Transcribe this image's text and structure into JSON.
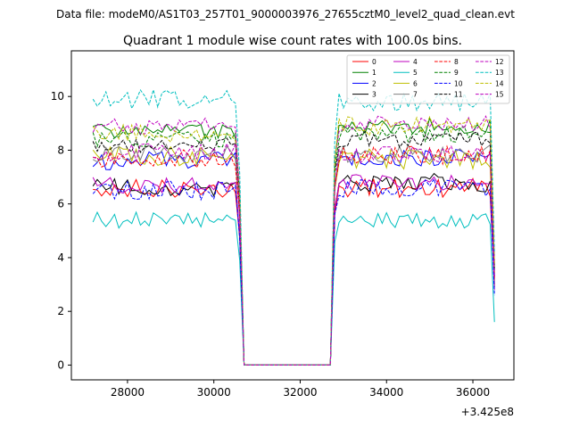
{
  "chart_data": {
    "type": "line",
    "suptitle": "Data file: modeM0/AS1T03_257T01_9000003976_27655cztM0_level2_quad_clean.evt",
    "title": "Quadrant 1 module wise count rates with 100.0s bins.",
    "xlabel": "",
    "ylabel": "",
    "x_offset_label": "+3.425e8",
    "x_ticks": [
      28000,
      30000,
      32000,
      34000,
      36000
    ],
    "x_tick_labels": [
      "28000",
      "30000",
      "32000",
      "34000",
      "36000"
    ],
    "y_ticks": [
      0,
      2,
      4,
      6,
      8,
      10
    ],
    "y_tick_labels": [
      "0",
      "2",
      "4",
      "6",
      "8",
      "10"
    ],
    "xlim": [
      26700,
      36950
    ],
    "ylim": [
      -0.55,
      11.7
    ],
    "grid": false,
    "legend_placement": "top-right",
    "legend_columns": 4,
    "segments": {
      "bin_seconds": 100,
      "seg1": {
        "start": 27200,
        "end": 30500
      },
      "drop": {
        "start": 30600,
        "end": 30700
      },
      "gap": {
        "start": 30700,
        "end": 32700
      },
      "rise": {
        "start": 32700,
        "end": 32800
      },
      "seg2": {
        "start": 32900,
        "end": 36400
      },
      "end_drop_x": 36500
    },
    "series": [
      {
        "name": "0",
        "color": "#ff0000",
        "dash": "solid",
        "level1": 6.6,
        "level2": 6.6,
        "amp": 0.35,
        "end_value": 3.0
      },
      {
        "name": "1",
        "color": "#008000",
        "dash": "solid",
        "level1": 8.7,
        "level2": 8.9,
        "amp": 0.3,
        "end_value": 3.7
      },
      {
        "name": "2",
        "color": "#0000ff",
        "dash": "solid",
        "level1": 7.6,
        "level2": 7.7,
        "amp": 0.35,
        "end_value": 3.3
      },
      {
        "name": "3",
        "color": "#000000",
        "dash": "solid",
        "level1": 6.6,
        "level2": 6.8,
        "amp": 0.35,
        "end_value": 2.9
      },
      {
        "name": "4",
        "color": "#bf00bf",
        "dash": "solid",
        "level1": 6.7,
        "level2": 6.8,
        "amp": 0.3,
        "end_value": 2.8
      },
      {
        "name": "5",
        "color": "#00bfbf",
        "dash": "solid",
        "level1": 5.4,
        "level2": 5.4,
        "amp": 0.3,
        "end_value": 1.6
      },
      {
        "name": "6",
        "color": "#bfbf00",
        "dash": "solid",
        "level1": 7.8,
        "level2": 7.7,
        "amp": 0.4,
        "end_value": 3.4
      },
      {
        "name": "7",
        "color": "#808080",
        "dash": "solid",
        "level1": 7.9,
        "level2": 7.9,
        "amp": 0.35,
        "end_value": 3.3
      },
      {
        "name": "8",
        "color": "#ff0000",
        "dash": "dashed",
        "level1": 7.7,
        "level2": 7.8,
        "amp": 0.35,
        "end_value": 3.2
      },
      {
        "name": "9",
        "color": "#008000",
        "dash": "dashed",
        "level1": 8.4,
        "level2": 8.6,
        "amp": 0.3,
        "end_value": 3.6
      },
      {
        "name": "10",
        "color": "#0000ff",
        "dash": "dashed",
        "level1": 6.5,
        "level2": 6.6,
        "amp": 0.35,
        "end_value": 2.6
      },
      {
        "name": "11",
        "color": "#000000",
        "dash": "dashed",
        "level1": 8.2,
        "level2": 8.4,
        "amp": 0.3,
        "end_value": 3.5
      },
      {
        "name": "12",
        "color": "#bf00bf",
        "dash": "dashed",
        "level1": 8.9,
        "level2": 9.0,
        "amp": 0.3,
        "end_value": 3.8
      },
      {
        "name": "13",
        "color": "#00bfbf",
        "dash": "dashed",
        "level1": 9.9,
        "level2": 9.8,
        "amp": 0.35,
        "end_value": 4.2
      },
      {
        "name": "14",
        "color": "#bfbf00",
        "dash": "dashed",
        "level1": 8.6,
        "level2": 8.9,
        "amp": 0.35,
        "end_value": 3.7
      },
      {
        "name": "15",
        "color": "#bf00bf",
        "dash": "dashed",
        "level1": 7.9,
        "level2": 7.8,
        "amp": 0.35,
        "end_value": 3.3
      }
    ]
  }
}
